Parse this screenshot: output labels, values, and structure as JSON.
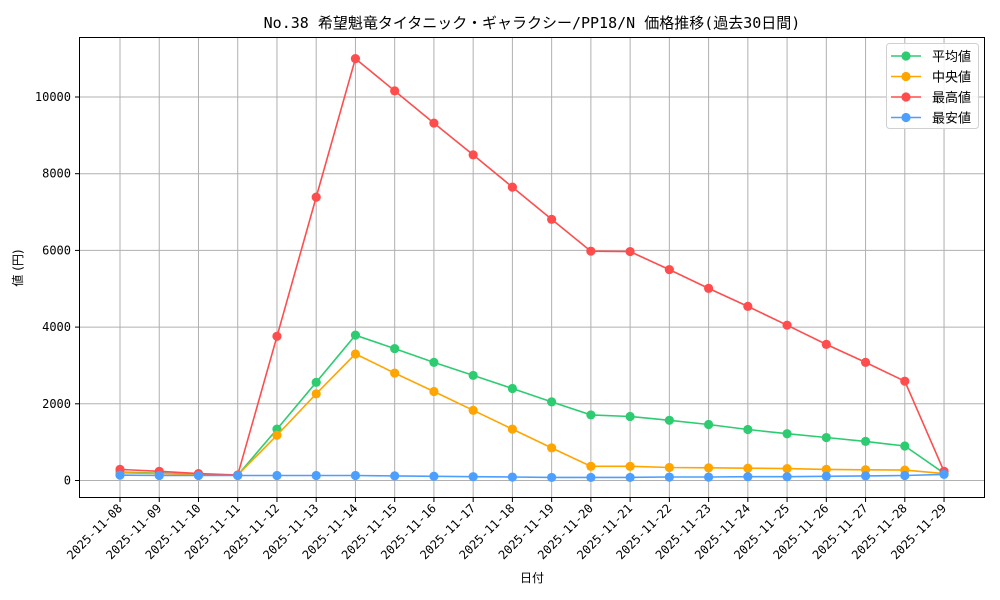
{
  "chart_data": {
    "type": "line",
    "title": "No.38 希望魁竜タイタニック・ギャラクシー/PP18/N 価格推移(過去30日間)",
    "xlabel": "日付",
    "ylabel": "値 (円)",
    "ylim": [
      -450,
      11500
    ],
    "yticks": [
      0,
      2000,
      4000,
      6000,
      8000,
      10000
    ],
    "grid": true,
    "legend_position": "upper right",
    "categories": [
      "2025-11-08",
      "2025-11-09",
      "2025-11-10",
      "2025-11-11",
      "2025-11-12",
      "2025-11-13",
      "2025-11-14",
      "2025-11-15",
      "2025-11-16",
      "2025-11-17",
      "2025-11-18",
      "2025-11-19",
      "2025-11-20",
      "2025-11-21",
      "2025-11-22",
      "2025-11-23",
      "2025-11-24",
      "2025-11-25",
      "2025-11-26",
      "2025-11-27",
      "2025-11-28",
      "2025-11-29"
    ],
    "series": [
      {
        "name": "平均値",
        "color": "#2ecc71",
        "values": [
          220,
          190,
          160,
          140,
          1340,
          2560,
          3790,
          3440,
          3080,
          2740,
          2400,
          2050,
          1710,
          1670,
          1570,
          1460,
          1330,
          1220,
          1120,
          1020,
          900,
          190
        ]
      },
      {
        "name": "中央値",
        "color": "#ffa500",
        "values": [
          200,
          180,
          150,
          140,
          1180,
          2260,
          3300,
          2800,
          2320,
          1830,
          1340,
          850,
          370,
          370,
          340,
          330,
          320,
          310,
          290,
          280,
          270,
          180
        ]
      },
      {
        "name": "最高値",
        "color": "#ff4d4d",
        "values": [
          290,
          240,
          180,
          140,
          3760,
          7390,
          11000,
          10160,
          9320,
          8490,
          7650,
          6810,
          5980,
          5970,
          5500,
          5010,
          4540,
          4050,
          3550,
          3080,
          2590,
          240
        ]
      },
      {
        "name": "最安値",
        "color": "#4d9fff",
        "values": [
          140,
          130,
          130,
          130,
          130,
          130,
          130,
          120,
          110,
          100,
          90,
          80,
          80,
          80,
          90,
          90,
          100,
          100,
          110,
          120,
          130,
          160
        ]
      }
    ]
  }
}
